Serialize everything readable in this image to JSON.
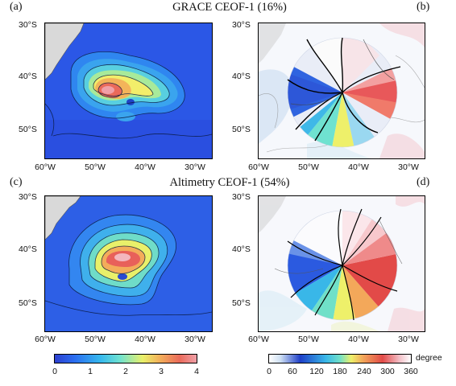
{
  "titles": {
    "grace": "GRACE CEOF-1 (16%)",
    "altimetry": "Altimetry CEOF-1 (54%)"
  },
  "panel_labels": [
    "(a)",
    "(b)",
    "(c)",
    "(d)"
  ],
  "axes": {
    "lat_ticks": [
      "30°S",
      "40°S",
      "50°S"
    ],
    "lon_ticks": [
      "60°W",
      "50°W",
      "40°W",
      "30°W"
    ]
  },
  "colorbars": {
    "amplitude": {
      "ticks": [
        "0",
        "1",
        "2",
        "3",
        "4"
      ],
      "range": [
        0,
        4
      ],
      "colors": [
        "#2d3fd0",
        "#2b6ef0",
        "#36b8ee",
        "#6fe2d0",
        "#e9f06a",
        "#f3b05a",
        "#ea6a5a",
        "#f0a0a8"
      ]
    },
    "phase": {
      "ticks": [
        "0",
        "60",
        "120",
        "180",
        "240",
        "300",
        "360"
      ],
      "unit": "degree",
      "range": [
        0,
        360
      ],
      "colors": [
        "#ffffff",
        "#cfe0f3",
        "#1e3fc8",
        "#39b7e8",
        "#70e0c8",
        "#eef06a",
        "#f3a85a",
        "#e24a48",
        "#f3c0c8",
        "#ffffff"
      ]
    }
  },
  "colors": {
    "land": "#d9d9d9",
    "ocean_low": "#2b5de8",
    "frame": "#000000"
  }
}
